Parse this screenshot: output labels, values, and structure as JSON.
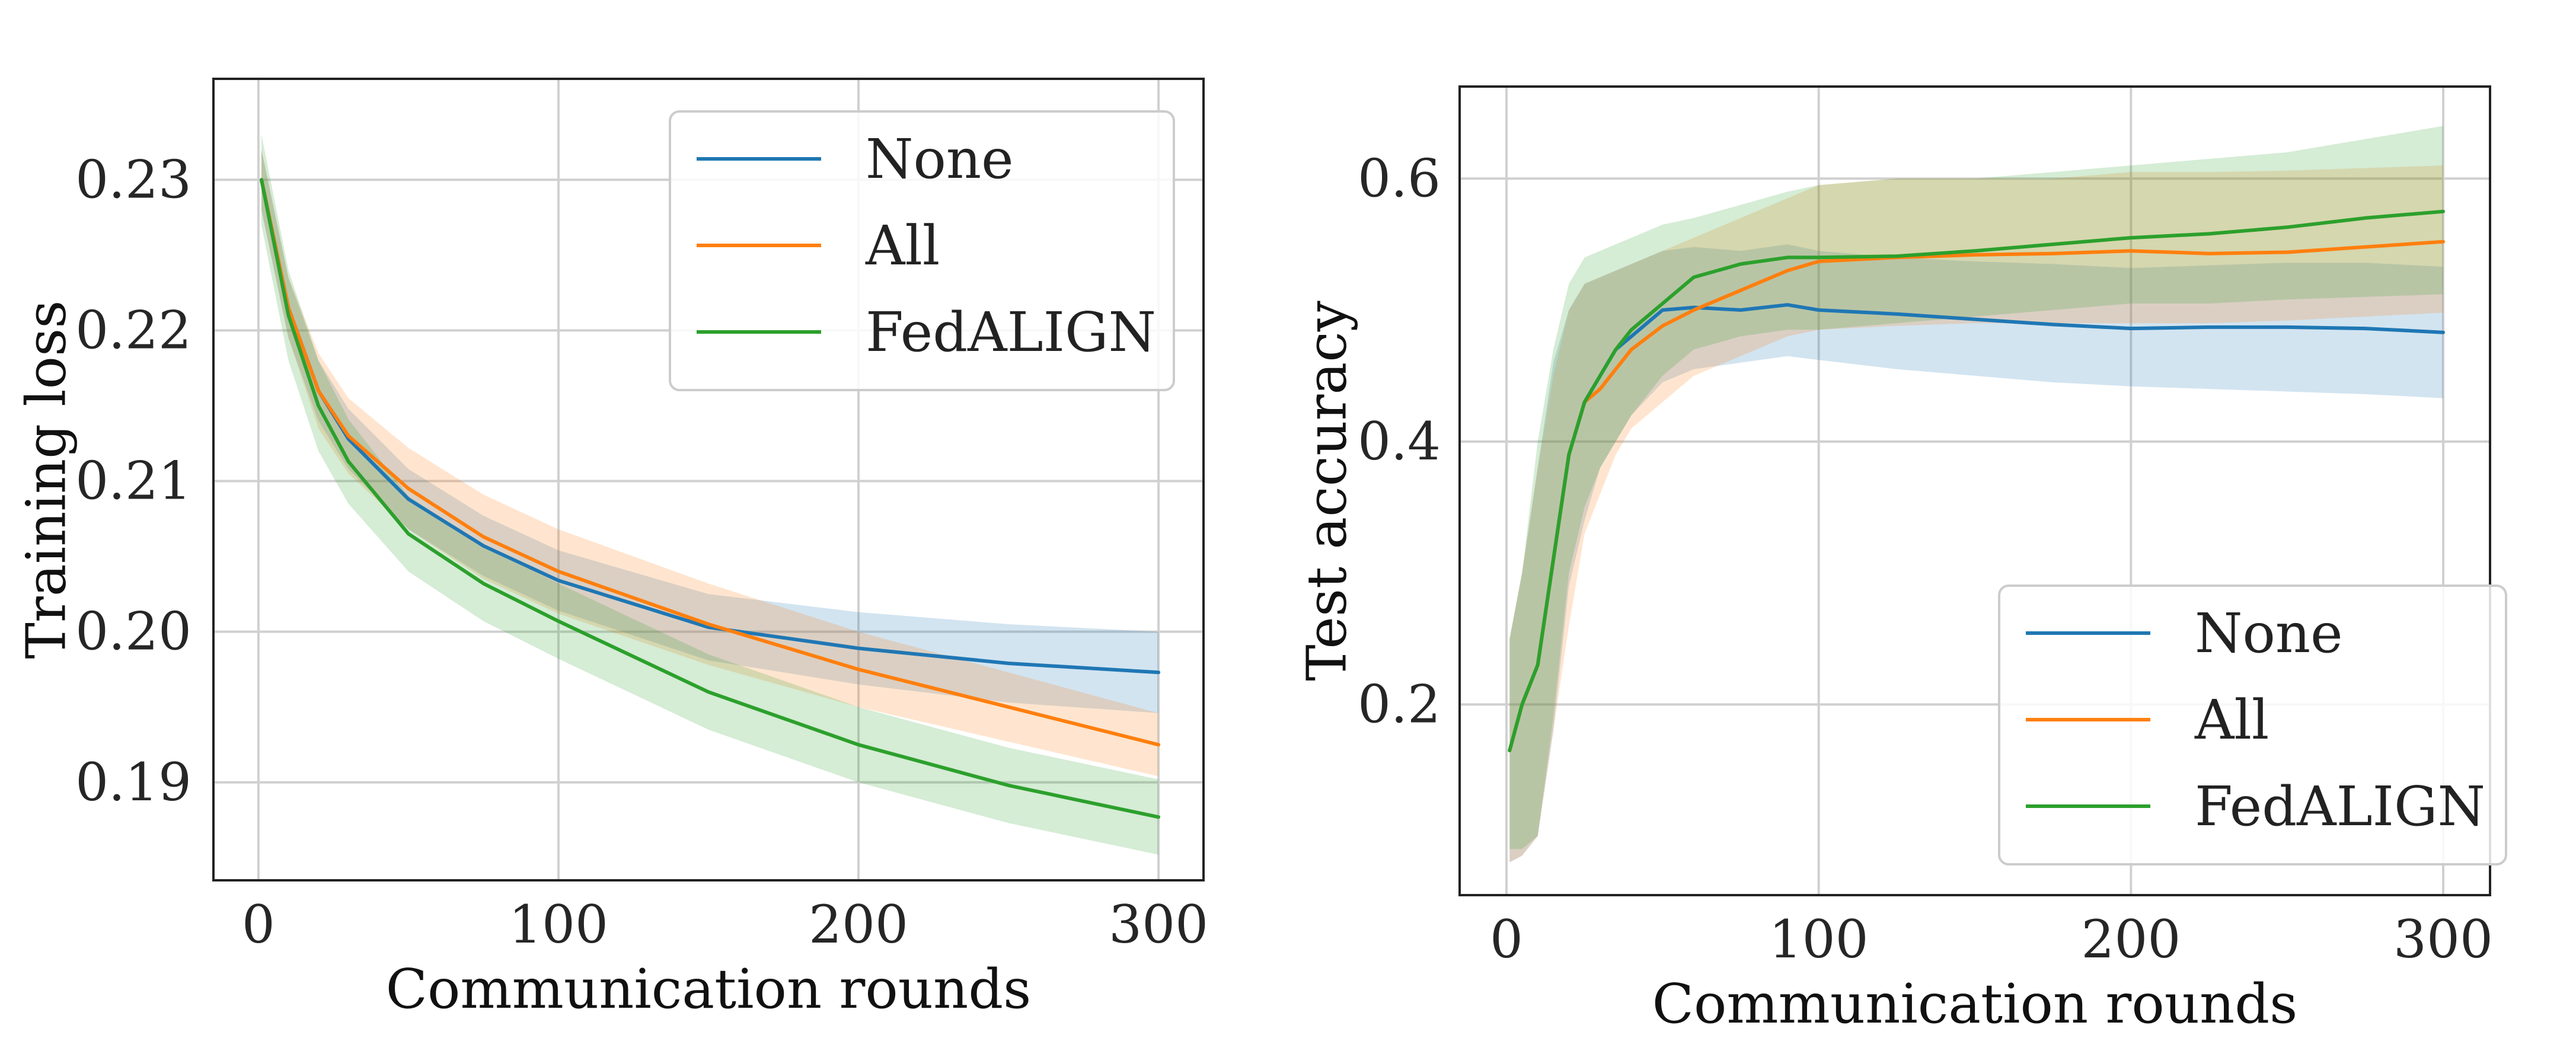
{
  "chart_data": [
    {
      "type": "line",
      "title": "",
      "xlabel": "Communication rounds",
      "ylabel": "Training loss",
      "xlim": [
        -15,
        315
      ],
      "ylim": [
        0.1835,
        0.2367
      ],
      "xticks": [
        0,
        100,
        200,
        300
      ],
      "xtick_labels": [
        "0",
        "100",
        "200",
        "300"
      ],
      "yticks": [
        0.19,
        0.2,
        0.21,
        0.22,
        0.23
      ],
      "ytick_labels": [
        "0.19",
        "0.20",
        "0.21",
        "0.22",
        "0.23"
      ],
      "grid": true,
      "legend_position": "top-right",
      "x": [
        1,
        10,
        20,
        30,
        50,
        75,
        100,
        150,
        200,
        250,
        300
      ],
      "series": [
        {
          "name": "None",
          "color": "#1f77b4",
          "values": [
            0.23,
            0.2215,
            0.216,
            0.2128,
            0.2088,
            0.2057,
            0.2034,
            0.2003,
            0.1989,
            0.1979,
            0.1973
          ],
          "lower": [
            0.228,
            0.2195,
            0.214,
            0.2108,
            0.2068,
            0.2037,
            0.2014,
            0.1981,
            0.1965,
            0.1953,
            0.1946
          ],
          "upper": [
            0.232,
            0.2235,
            0.218,
            0.2148,
            0.2108,
            0.2077,
            0.2054,
            0.2025,
            0.2013,
            0.2005,
            0.2
          ]
        },
        {
          "name": "All",
          "color": "#ff7f0e",
          "values": [
            0.23,
            0.2215,
            0.216,
            0.213,
            0.2095,
            0.2063,
            0.204,
            0.2005,
            0.1975,
            0.195,
            0.1925
          ],
          "lower": [
            0.228,
            0.2195,
            0.2135,
            0.2105,
            0.2068,
            0.2035,
            0.2012,
            0.1978,
            0.195,
            0.1927,
            0.1904
          ],
          "upper": [
            0.232,
            0.2235,
            0.2185,
            0.2155,
            0.2122,
            0.2091,
            0.2068,
            0.2032,
            0.2,
            0.1973,
            0.1946
          ]
        },
        {
          "name": "FedALIGN",
          "color": "#2ca02c",
          "values": [
            0.23,
            0.221,
            0.215,
            0.2113,
            0.2065,
            0.2032,
            0.2007,
            0.196,
            0.1925,
            0.1898,
            0.1877
          ],
          "lower": [
            0.227,
            0.218,
            0.212,
            0.2085,
            0.204,
            0.2007,
            0.1982,
            0.1935,
            0.19,
            0.1873,
            0.1852
          ],
          "upper": [
            0.233,
            0.224,
            0.218,
            0.2141,
            0.209,
            0.2057,
            0.2032,
            0.1985,
            0.195,
            0.1923,
            0.1902
          ]
        }
      ]
    },
    {
      "type": "line",
      "title": "",
      "xlabel": "Communication rounds",
      "ylabel": "Test accuracy",
      "xlim": [
        -15,
        315
      ],
      "ylim": [
        0.055,
        0.67
      ],
      "xticks": [
        0,
        100,
        200,
        300
      ],
      "xtick_labels": [
        "0",
        "100",
        "200",
        "300"
      ],
      "yticks": [
        0.2,
        0.4,
        0.6
      ],
      "ytick_labels": [
        "0.2",
        "0.4",
        "0.6"
      ],
      "grid": true,
      "legend_position": "bottom-right",
      "x": [
        1,
        5,
        10,
        15,
        20,
        25,
        30,
        35,
        40,
        50,
        60,
        75,
        90,
        100,
        125,
        150,
        175,
        200,
        225,
        250,
        275,
        300
      ],
      "series": [
        {
          "name": "None",
          "color": "#1f77b4",
          "values": [
            0.165,
            0.2,
            0.23,
            0.31,
            0.39,
            0.43,
            0.45,
            0.47,
            0.48,
            0.5,
            0.502,
            0.5,
            0.504,
            0.5,
            0.497,
            0.493,
            0.489,
            0.486,
            0.487,
            0.487,
            0.486,
            0.483
          ],
          "lower": [
            0.08,
            0.085,
            0.1,
            0.18,
            0.29,
            0.34,
            0.38,
            0.4,
            0.42,
            0.445,
            0.455,
            0.46,
            0.465,
            0.462,
            0.455,
            0.45,
            0.445,
            0.442,
            0.44,
            0.438,
            0.436,
            0.433
          ],
          "upper": [
            0.25,
            0.3,
            0.38,
            0.46,
            0.5,
            0.52,
            0.525,
            0.53,
            0.535,
            0.545,
            0.548,
            0.545,
            0.55,
            0.545,
            0.54,
            0.537,
            0.535,
            0.532,
            0.534,
            0.536,
            0.536,
            0.533
          ]
        },
        {
          "name": "All",
          "color": "#ff7f0e",
          "values": [
            0.165,
            0.2,
            0.23,
            0.31,
            0.39,
            0.43,
            0.44,
            0.455,
            0.47,
            0.488,
            0.5,
            0.515,
            0.53,
            0.537,
            0.54,
            0.542,
            0.543,
            0.545,
            0.543,
            0.544,
            0.548,
            0.552
          ],
          "lower": [
            0.08,
            0.085,
            0.1,
            0.18,
            0.26,
            0.33,
            0.36,
            0.39,
            0.41,
            0.43,
            0.45,
            0.465,
            0.48,
            0.485,
            0.488,
            0.49,
            0.49,
            0.49,
            0.49,
            0.492,
            0.495,
            0.498
          ],
          "upper": [
            0.25,
            0.3,
            0.38,
            0.45,
            0.5,
            0.52,
            0.525,
            0.53,
            0.535,
            0.545,
            0.555,
            0.57,
            0.585,
            0.595,
            0.6,
            0.6,
            0.6,
            0.605,
            0.605,
            0.606,
            0.608,
            0.61
          ]
        },
        {
          "name": "FedALIGN",
          "color": "#2ca02c",
          "values": [
            0.165,
            0.2,
            0.23,
            0.31,
            0.39,
            0.43,
            0.45,
            0.47,
            0.485,
            0.505,
            0.525,
            0.535,
            0.54,
            0.54,
            0.541,
            0.545,
            0.55,
            0.555,
            0.558,
            0.563,
            0.57,
            0.575
          ],
          "lower": [
            0.09,
            0.09,
            0.1,
            0.19,
            0.3,
            0.35,
            0.38,
            0.4,
            0.42,
            0.45,
            0.47,
            0.48,
            0.485,
            0.485,
            0.49,
            0.495,
            0.5,
            0.505,
            0.505,
            0.508,
            0.51,
            0.512
          ],
          "upper": [
            0.25,
            0.3,
            0.4,
            0.47,
            0.52,
            0.54,
            0.545,
            0.55,
            0.555,
            0.565,
            0.57,
            0.58,
            0.59,
            0.595,
            0.6,
            0.6,
            0.605,
            0.61,
            0.615,
            0.62,
            0.63,
            0.64
          ]
        }
      ]
    }
  ]
}
